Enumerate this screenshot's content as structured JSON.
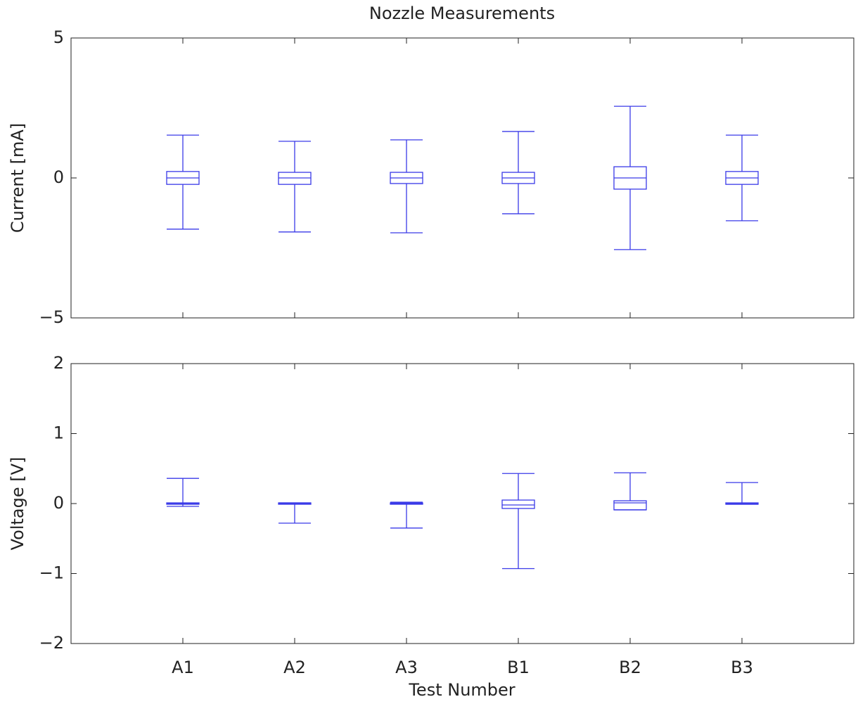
{
  "chart_data": [
    {
      "type": "box",
      "title": "Nozzle Measurements",
      "ylabel": "Current [mA]",
      "color": "#3a3ae8",
      "ylim": [
        -5,
        5
      ],
      "yticks": [
        {
          "value": -5,
          "label": "−5"
        },
        0,
        5
      ],
      "boxes": [
        {
          "min": -1.83,
          "q1": -0.23,
          "median": 0,
          "q3": 0.23,
          "max": 1.53
        },
        {
          "min": -1.93,
          "q1": -0.23,
          "median": 0,
          "q3": 0.2,
          "max": 1.31
        },
        {
          "min": -1.96,
          "q1": -0.2,
          "median": 0,
          "q3": 0.2,
          "max": 1.36
        },
        {
          "min": -1.28,
          "q1": -0.2,
          "median": 0,
          "q3": 0.2,
          "max": 1.66
        },
        {
          "min": -2.56,
          "q1": -0.4,
          "median": 0,
          "q3": 0.4,
          "max": 2.56
        },
        {
          "min": -1.53,
          "q1": -0.23,
          "median": 0,
          "q3": 0.23,
          "max": 1.53
        }
      ]
    },
    {
      "type": "box",
      "ylabel": "Voltage [V]",
      "xlabel": "Test Number",
      "color": "#3a3ae8",
      "categories": [
        "A1",
        "A2",
        "A3",
        "B1",
        "B2",
        "B3"
      ],
      "ylim": [
        -2,
        2
      ],
      "yticks": [
        {
          "value": -2,
          "label": "−2"
        },
        {
          "value": -1,
          "label": "−1"
        },
        0,
        1,
        2
      ],
      "boxes": [
        {
          "min": -0.04,
          "q1": -0.01,
          "median": 0,
          "q3": 0.01,
          "max": 0.36
        },
        {
          "min": -0.28,
          "q1": -0.01,
          "median": 0,
          "q3": 0.01,
          "max": 0.01
        },
        {
          "min": -0.35,
          "q1": -0.01,
          "median": 0,
          "q3": 0.01,
          "max": 0.02
        },
        {
          "min": -0.93,
          "q1": -0.07,
          "median": -0.02,
          "q3": 0.05,
          "max": 0.43
        },
        {
          "min": -0.09,
          "q1": -0.09,
          "median": 0.01,
          "q3": 0.04,
          "max": 0.44
        },
        {
          "min": -0.01,
          "q1": -0.01,
          "median": 0,
          "q3": 0.01,
          "max": 0.3
        }
      ]
    }
  ]
}
